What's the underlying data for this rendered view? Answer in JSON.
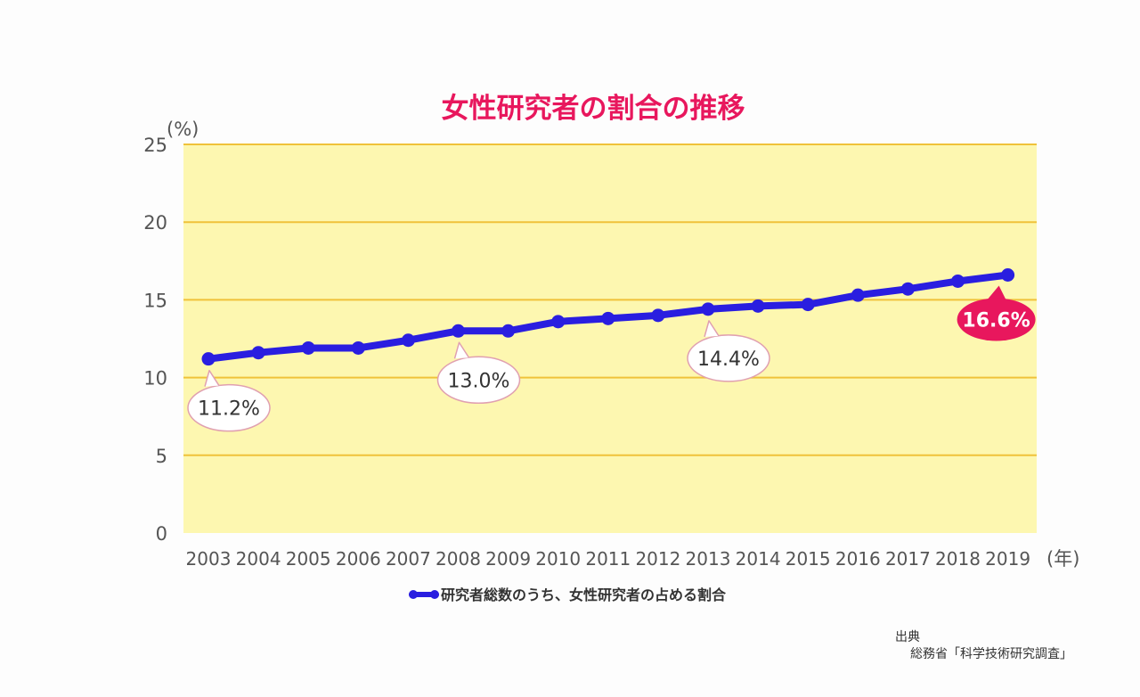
{
  "chart_data": {
    "type": "line",
    "title": "女性研究者の割合の推移",
    "y_unit": "(%)",
    "x_unit": "(年)",
    "ylim": [
      0,
      25
    ],
    "y_ticks": [
      0,
      5,
      10,
      15,
      20,
      25
    ],
    "grid": true,
    "x": [
      "2003",
      "2004",
      "2005",
      "2006",
      "2007",
      "2008",
      "2009",
      "2010",
      "2011",
      "2012",
      "2013",
      "2014",
      "2015",
      "2016",
      "2017",
      "2018",
      "2019"
    ],
    "series": [
      {
        "name": "研究者総数のうち、女性研究者の占める割合",
        "color": "#2a1ee0",
        "values": [
          11.2,
          11.6,
          11.9,
          11.9,
          12.4,
          13.0,
          13.0,
          13.6,
          13.8,
          14.0,
          14.4,
          14.6,
          14.7,
          15.3,
          15.7,
          16.2,
          16.6
        ]
      }
    ],
    "annotations": [
      {
        "year": "2003",
        "label": "11.2%",
        "highlight": false
      },
      {
        "year": "2008",
        "label": "13.0%",
        "highlight": false
      },
      {
        "year": "2013",
        "label": "14.4%",
        "highlight": false
      },
      {
        "year": "2019",
        "label": "16.6%",
        "highlight": true
      }
    ],
    "legend_position": "bottom",
    "source_label": "出典",
    "source_text": "総務省「科学技術研究調査」"
  },
  "colors": {
    "title": "#e8175d",
    "plot_bg": "#fdf7b0",
    "grid": "#f0c23a",
    "line": "#2a1ee0",
    "callout_border": "#e0a0b0",
    "callout_highlight": "#e8175d"
  }
}
